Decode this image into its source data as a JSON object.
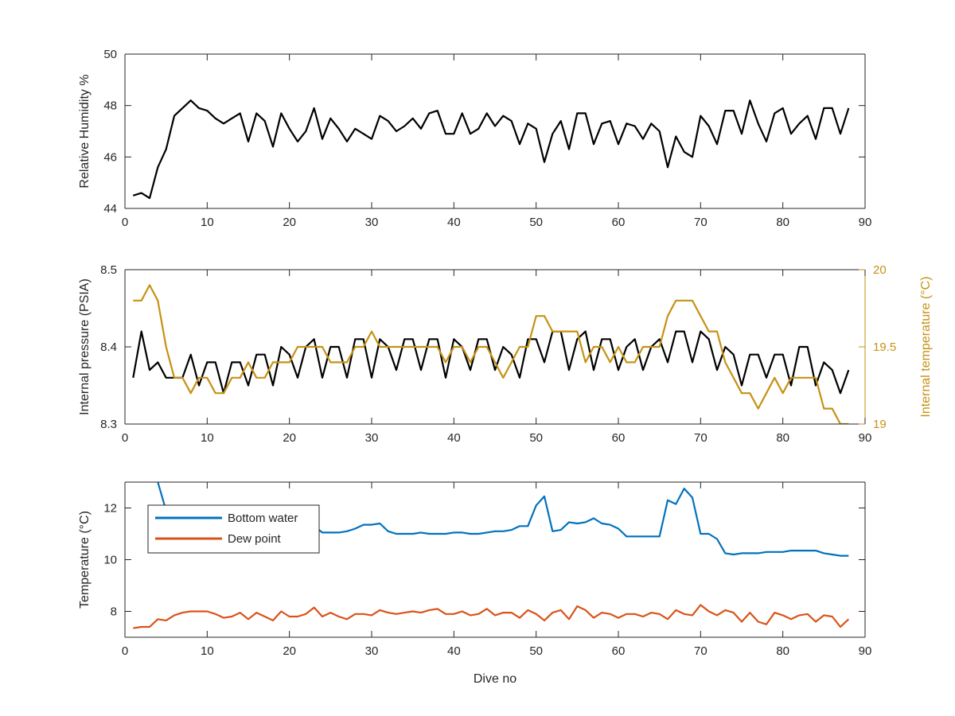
{
  "chart_data": [
    {
      "type": "line",
      "xlabel": "",
      "ylabel": "Relative Humidity %",
      "xlim": [
        0,
        90
      ],
      "ylim": [
        44,
        50
      ],
      "xticks": [
        0,
        10,
        20,
        30,
        40,
        50,
        60,
        70,
        80,
        90
      ],
      "yticks": [
        44,
        46,
        48,
        50
      ],
      "series": [
        {
          "color": "#000000",
          "x": [
            1,
            2,
            3,
            4,
            5,
            6,
            7,
            8,
            9,
            10,
            11,
            12,
            13,
            14,
            15,
            16,
            17,
            18,
            19,
            20,
            21,
            22,
            23,
            24,
            25,
            26,
            27,
            28,
            29,
            30,
            31,
            32,
            33,
            34,
            35,
            36,
            37,
            38,
            39,
            40,
            41,
            42,
            43,
            44,
            45,
            46,
            47,
            48,
            49,
            50,
            51,
            52,
            53,
            54,
            55,
            56,
            57,
            58,
            59,
            60,
            61,
            62,
            63,
            64,
            65,
            66,
            67,
            68,
            69,
            70,
            71,
            72,
            73,
            74,
            75,
            76,
            77,
            78,
            79,
            80,
            81,
            82,
            83,
            84,
            85,
            86,
            87,
            88
          ],
          "values": [
            44.5,
            44.6,
            44.4,
            45.6,
            46.3,
            47.6,
            47.9,
            48.2,
            47.9,
            47.8,
            47.5,
            47.3,
            47.5,
            47.7,
            46.6,
            47.7,
            47.4,
            46.4,
            47.7,
            47.1,
            46.6,
            47.0,
            47.9,
            46.7,
            47.5,
            47.1,
            46.6,
            47.1,
            46.9,
            46.7,
            47.6,
            47.4,
            47.0,
            47.2,
            47.5,
            47.1,
            47.7,
            47.8,
            46.9,
            46.9,
            47.7,
            46.9,
            47.1,
            47.7,
            47.2,
            47.6,
            47.4,
            46.5,
            47.3,
            47.1,
            45.8,
            46.9,
            47.4,
            46.3,
            47.7,
            47.7,
            46.5,
            47.3,
            47.4,
            46.5,
            47.3,
            47.2,
            46.7,
            47.3,
            47.0,
            45.6,
            46.8,
            46.2,
            46.0,
            47.6,
            47.2,
            46.5,
            47.8,
            47.8,
            46.9,
            48.2,
            47.3,
            46.6,
            47.7,
            47.9,
            46.9,
            47.3,
            47.6,
            46.7,
            47.9,
            47.9,
            46.9,
            47.9
          ]
        }
      ]
    },
    {
      "type": "line",
      "xlabel": "",
      "ylabel": "Internal pressure (PSIA)",
      "ylabel_right": "Internal temperature (°C)",
      "xlim": [
        0,
        90
      ],
      "ylim": [
        8.3,
        8.5
      ],
      "ylim_right": [
        19,
        20
      ],
      "xticks": [
        0,
        10,
        20,
        30,
        40,
        50,
        60,
        70,
        80,
        90
      ],
      "yticks": [
        8.3,
        8.4,
        8.5
      ],
      "yticks_right": [
        19,
        19.5,
        20
      ],
      "series": [
        {
          "color": "#000000",
          "axis": "left",
          "x": [
            1,
            2,
            3,
            4,
            5,
            6,
            7,
            8,
            9,
            10,
            11,
            12,
            13,
            14,
            15,
            16,
            17,
            18,
            19,
            20,
            21,
            22,
            23,
            24,
            25,
            26,
            27,
            28,
            29,
            30,
            31,
            32,
            33,
            34,
            35,
            36,
            37,
            38,
            39,
            40,
            41,
            42,
            43,
            44,
            45,
            46,
            47,
            48,
            49,
            50,
            51,
            52,
            53,
            54,
            55,
            56,
            57,
            58,
            59,
            60,
            61,
            62,
            63,
            64,
            65,
            66,
            67,
            68,
            69,
            70,
            71,
            72,
            73,
            74,
            75,
            76,
            77,
            78,
            79,
            80,
            81,
            82,
            83,
            84,
            85,
            86,
            87,
            88
          ],
          "values": [
            8.36,
            8.42,
            8.37,
            8.38,
            8.36,
            8.36,
            8.36,
            8.39,
            8.35,
            8.38,
            8.38,
            8.34,
            8.38,
            8.38,
            8.35,
            8.39,
            8.39,
            8.35,
            8.4,
            8.39,
            8.36,
            8.4,
            8.41,
            8.36,
            8.4,
            8.4,
            8.36,
            8.41,
            8.41,
            8.36,
            8.41,
            8.4,
            8.37,
            8.41,
            8.41,
            8.37,
            8.41,
            8.41,
            8.36,
            8.41,
            8.4,
            8.37,
            8.41,
            8.41,
            8.37,
            8.4,
            8.39,
            8.36,
            8.41,
            8.41,
            8.38,
            8.42,
            8.42,
            8.37,
            8.41,
            8.42,
            8.37,
            8.41,
            8.41,
            8.37,
            8.4,
            8.41,
            8.37,
            8.4,
            8.41,
            8.38,
            8.42,
            8.42,
            8.38,
            8.42,
            8.41,
            8.37,
            8.4,
            8.39,
            8.35,
            8.39,
            8.39,
            8.36,
            8.39,
            8.39,
            8.35,
            8.4,
            8.4,
            8.35,
            8.38,
            8.37,
            8.34,
            8.37
          ]
        },
        {
          "color": "#c69214",
          "axis": "right",
          "x": [
            1,
            2,
            3,
            4,
            5,
            6,
            7,
            8,
            9,
            10,
            11,
            12,
            13,
            14,
            15,
            16,
            17,
            18,
            19,
            20,
            21,
            22,
            23,
            24,
            25,
            26,
            27,
            28,
            29,
            30,
            31,
            32,
            33,
            34,
            35,
            36,
            37,
            38,
            39,
            40,
            41,
            42,
            43,
            44,
            45,
            46,
            47,
            48,
            49,
            50,
            51,
            52,
            53,
            54,
            55,
            56,
            57,
            58,
            59,
            60,
            61,
            62,
            63,
            64,
            65,
            66,
            67,
            68,
            69,
            70,
            71,
            72,
            73,
            74,
            75,
            76,
            77,
            78,
            79,
            80,
            81,
            82,
            83,
            84,
            85,
            86,
            87,
            88
          ],
          "values": [
            19.8,
            19.8,
            19.9,
            19.8,
            19.5,
            19.3,
            19.3,
            19.2,
            19.3,
            19.3,
            19.2,
            19.2,
            19.3,
            19.3,
            19.4,
            19.3,
            19.3,
            19.4,
            19.4,
            19.4,
            19.5,
            19.5,
            19.5,
            19.5,
            19.4,
            19.4,
            19.4,
            19.5,
            19.5,
            19.6,
            19.5,
            19.5,
            19.5,
            19.5,
            19.5,
            19.5,
            19.5,
            19.5,
            19.4,
            19.5,
            19.5,
            19.4,
            19.5,
            19.5,
            19.4,
            19.3,
            19.4,
            19.5,
            19.5,
            19.7,
            19.7,
            19.6,
            19.6,
            19.6,
            19.6,
            19.4,
            19.5,
            19.5,
            19.4,
            19.5,
            19.4,
            19.4,
            19.5,
            19.5,
            19.5,
            19.7,
            19.8,
            19.8,
            19.8,
            19.7,
            19.6,
            19.6,
            19.4,
            19.3,
            19.2,
            19.2,
            19.1,
            19.2,
            19.3,
            19.2,
            19.3,
            19.3,
            19.3,
            19.3,
            19.1,
            19.1,
            19.0,
            19.0
          ]
        }
      ]
    },
    {
      "type": "line",
      "xlabel": "Dive no",
      "ylabel": "Temperature (°C)",
      "xlim": [
        0,
        90
      ],
      "ylim": [
        7,
        13
      ],
      "xticks": [
        0,
        10,
        20,
        30,
        40,
        50,
        60,
        70,
        80,
        90
      ],
      "yticks": [
        8,
        10,
        12
      ],
      "legend_position": "top-left",
      "series": [
        {
          "name": "Bottom water",
          "color": "#0072bd",
          "x": [
            4,
            5,
            6,
            7,
            8,
            9,
            10,
            11,
            12,
            13,
            14,
            15,
            16,
            17,
            18,
            19,
            20,
            21,
            22,
            23,
            24,
            25,
            26,
            27,
            28,
            29,
            30,
            31,
            32,
            33,
            34,
            35,
            36,
            37,
            38,
            39,
            40,
            41,
            42,
            43,
            44,
            45,
            46,
            47,
            48,
            49,
            50,
            51,
            52,
            53,
            54,
            55,
            56,
            57,
            58,
            59,
            60,
            61,
            62,
            63,
            64,
            65,
            66,
            67,
            68,
            69,
            70,
            71,
            72,
            73,
            74,
            75,
            76,
            77,
            78,
            79,
            80,
            81,
            82,
            83,
            84,
            85,
            86,
            87,
            88
          ],
          "values": [
            13.0,
            11.9,
            11.8,
            11.7,
            11.6,
            11.6,
            11.5,
            11.5,
            11.4,
            11.4,
            11.4,
            11.3,
            11.3,
            11.3,
            11.2,
            11.2,
            11.2,
            11.2,
            11.2,
            11.3,
            11.05,
            11.05,
            11.05,
            11.1,
            11.2,
            11.35,
            11.35,
            11.4,
            11.1,
            11.0,
            11.0,
            11.0,
            11.05,
            11.0,
            11.0,
            11.0,
            11.05,
            11.05,
            11.0,
            11.0,
            11.05,
            11.1,
            11.1,
            11.15,
            11.3,
            11.3,
            12.1,
            12.45,
            11.1,
            11.15,
            11.45,
            11.4,
            11.45,
            11.6,
            11.4,
            11.35,
            11.2,
            10.9,
            10.9,
            10.9,
            10.9,
            10.9,
            12.3,
            12.15,
            12.75,
            12.4,
            11.0,
            11.0,
            10.8,
            10.25,
            10.2,
            10.25,
            10.25,
            10.25,
            10.3,
            10.3,
            10.3,
            10.35,
            10.35,
            10.35,
            10.35,
            10.25,
            10.2,
            10.15,
            10.15
          ]
        },
        {
          "name": "Dew point",
          "color": "#d95319",
          "x": [
            1,
            2,
            3,
            4,
            5,
            6,
            7,
            8,
            9,
            10,
            11,
            12,
            13,
            14,
            15,
            16,
            17,
            18,
            19,
            20,
            21,
            22,
            23,
            24,
            25,
            26,
            27,
            28,
            29,
            30,
            31,
            32,
            33,
            34,
            35,
            36,
            37,
            38,
            39,
            40,
            41,
            42,
            43,
            44,
            45,
            46,
            47,
            48,
            49,
            50,
            51,
            52,
            53,
            54,
            55,
            56,
            57,
            58,
            59,
            60,
            61,
            62,
            63,
            64,
            65,
            66,
            67,
            68,
            69,
            70,
            71,
            72,
            73,
            74,
            75,
            76,
            77,
            78,
            79,
            80,
            81,
            82,
            83,
            84,
            85,
            86,
            87,
            88
          ],
          "values": [
            7.35,
            7.4,
            7.4,
            7.7,
            7.65,
            7.85,
            7.95,
            8.0,
            8.0,
            8.0,
            7.9,
            7.75,
            7.8,
            7.95,
            7.7,
            7.95,
            7.8,
            7.65,
            8.0,
            7.8,
            7.8,
            7.9,
            8.15,
            7.8,
            7.95,
            7.8,
            7.7,
            7.9,
            7.9,
            7.85,
            8.05,
            7.95,
            7.9,
            7.95,
            8.0,
            7.95,
            8.05,
            8.1,
            7.9,
            7.9,
            8.0,
            7.85,
            7.9,
            8.1,
            7.85,
            7.95,
            7.95,
            7.75,
            8.05,
            7.9,
            7.65,
            7.95,
            8.05,
            7.7,
            8.2,
            8.05,
            7.75,
            7.95,
            7.9,
            7.75,
            7.9,
            7.9,
            7.8,
            7.95,
            7.9,
            7.7,
            8.05,
            7.9,
            7.85,
            8.25,
            8.0,
            7.85,
            8.05,
            7.95,
            7.6,
            7.95,
            7.6,
            7.5,
            7.95,
            7.85,
            7.7,
            7.85,
            7.9,
            7.6,
            7.85,
            7.8,
            7.4,
            7.7
          ]
        }
      ]
    }
  ],
  "colors": {
    "axis": "#262626",
    "right_axis": "#c69214"
  }
}
